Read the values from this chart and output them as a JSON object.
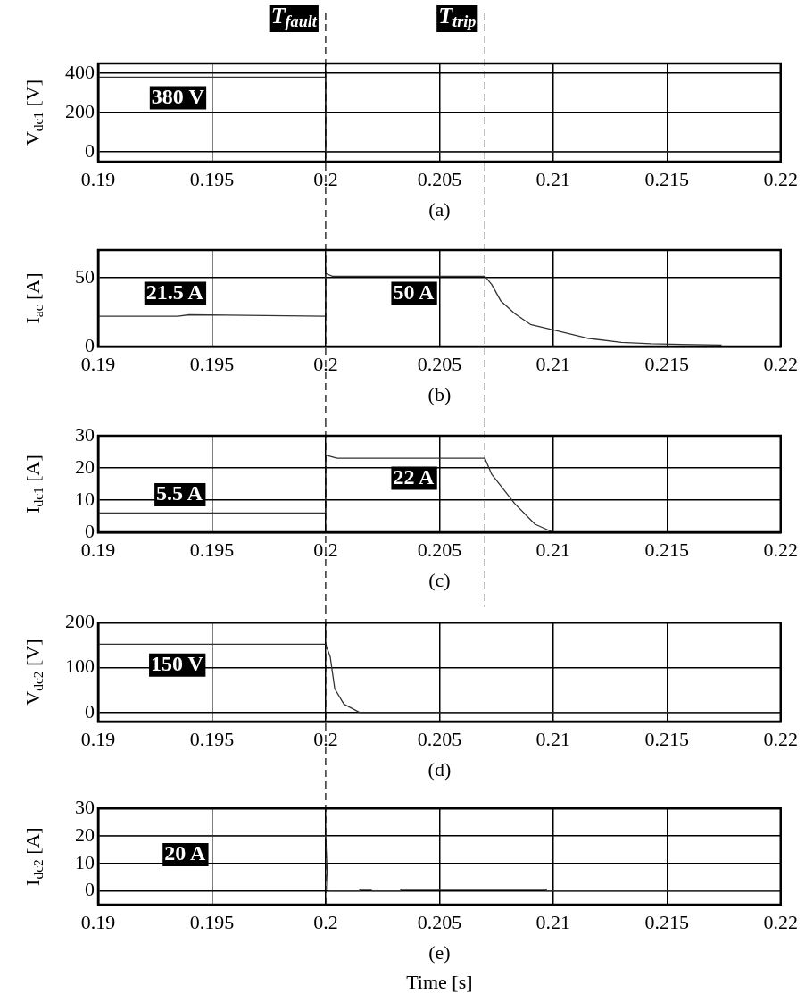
{
  "chart_data": [
    {
      "type": "line",
      "ylabel": "V$_{dc1}$ [V]",
      "subtitle": "(a)",
      "xlim": [
        0.19,
        0.22
      ],
      "xticks": [
        0.19,
        0.195,
        0.2,
        0.205,
        0.21,
        0.215,
        0.22
      ],
      "ylim": [
        -50,
        450
      ],
      "yticks": [
        0,
        200,
        400
      ],
      "grid": true,
      "x": [
        0.19,
        0.2,
        0.2,
        0.22
      ],
      "series": [
        {
          "color": "#333333",
          "values": [
            380,
            380,
            0,
            0
          ]
        }
      ],
      "ref_lines": [
        {
          "axis": "x",
          "value": 0.2,
          "label": "T$_{fault}$",
          "line_style": "dashed"
        },
        {
          "axis": "x",
          "value": 0.207,
          "label": "T$_{trip}$",
          "line_style": "dashed"
        }
      ],
      "annotations": [
        "380 V"
      ]
    },
    {
      "type": "line",
      "ylabel": "I$_{ac}$ [A]",
      "subtitle": "(b)",
      "xlim": [
        0.19,
        0.22
      ],
      "xticks": [
        0.19,
        0.195,
        0.2,
        0.205,
        0.21,
        0.215,
        0.22
      ],
      "ylim": [
        0,
        70
      ],
      "yticks": [
        0,
        50
      ],
      "grid": true,
      "x": [
        0.19,
        0.1935,
        0.194,
        0.2,
        0.2,
        0.2003,
        0.207,
        0.2073,
        0.2077,
        0.2083,
        0.209,
        0.21,
        0.2115,
        0.213,
        0.2143,
        0.2174
      ],
      "series": [
        {
          "color": "#333333",
          "values": [
            22,
            22,
            23,
            22,
            53,
            51,
            51,
            45,
            33,
            24,
            16,
            12,
            6,
            3,
            2,
            1
          ]
        }
      ],
      "ref_lines": [
        {
          "axis": "x",
          "value": 0.2,
          "line_style": "dashed"
        },
        {
          "axis": "x",
          "value": 0.207,
          "line_style": "dashed"
        }
      ],
      "annotations": [
        "21.5 A",
        "50 A"
      ]
    },
    {
      "type": "line",
      "ylabel": "I$_{dc1}$ [A]",
      "subtitle": "(c)",
      "xlim": [
        0.19,
        0.22
      ],
      "xticks": [
        0.19,
        0.195,
        0.2,
        0.205,
        0.21,
        0.215,
        0.22
      ],
      "ylim": [
        0,
        30
      ],
      "yticks": [
        0,
        10,
        20,
        30
      ],
      "grid": true,
      "x": [
        0.19,
        0.2,
        0.2,
        0.2005,
        0.207,
        0.2073,
        0.2083,
        0.2092,
        0.21,
        0.22
      ],
      "series": [
        {
          "color": "#333333",
          "values": [
            6,
            6,
            24,
            23,
            23,
            18,
            9,
            2.5,
            0,
            0
          ]
        }
      ],
      "ref_lines": [
        {
          "axis": "x",
          "value": 0.2,
          "line_style": "dashed"
        },
        {
          "axis": "x",
          "value": 0.207,
          "line_style": "dashed"
        }
      ],
      "annotations": [
        "5.5 A",
        "22 A"
      ]
    },
    {
      "type": "line",
      "ylabel": "V$_{dc2}$ [V]",
      "subtitle": "(d)",
      "xlim": [
        0.19,
        0.22
      ],
      "xticks": [
        0.19,
        0.195,
        0.2,
        0.205,
        0.21,
        0.215,
        0.22
      ],
      "ylim": [
        -20,
        200
      ],
      "yticks": [
        0,
        100,
        200
      ],
      "grid": true,
      "x": [
        0.19,
        0.2,
        0.2002,
        0.2004,
        0.2008,
        0.2015,
        0.22
      ],
      "series": [
        {
          "color": "#333333",
          "values": [
            152,
            152,
            124,
            53,
            19,
            0,
            0
          ]
        }
      ],
      "ref_lines": [
        {
          "axis": "x",
          "value": 0.2,
          "line_style": "dashed"
        }
      ],
      "annotations": [
        "150 V"
      ]
    },
    {
      "type": "line",
      "ylabel": "I$_{dc2}$ [A]",
      "subtitle": "(e)",
      "xlabel": "Time [s]",
      "xlim": [
        0.19,
        0.22
      ],
      "xticks": [
        0.19,
        0.195,
        0.2,
        0.205,
        0.21,
        0.215,
        0.22
      ],
      "ylim": [
        -5,
        30
      ],
      "yticks": [
        0,
        10,
        20,
        30
      ],
      "grid": true,
      "x": [
        0.19,
        0.2,
        0.2001,
        0.2015,
        0.2015,
        0.202,
        0.202,
        0.2033,
        0.2033,
        0.2097,
        0.2097,
        0.22
      ],
      "series": [
        {
          "color": "#333333",
          "values": [
            20,
            20,
            0,
            0,
            0.5,
            0.5,
            0,
            0,
            0.5,
            0.5,
            0,
            0
          ]
        }
      ],
      "ref_lines": [
        {
          "axis": "x",
          "value": 0.2,
          "line_style": "dashed"
        }
      ],
      "annotations": [
        "20 A"
      ]
    }
  ]
}
